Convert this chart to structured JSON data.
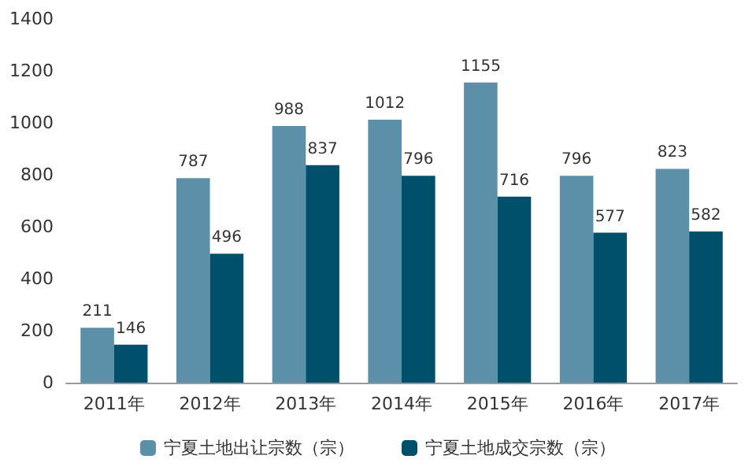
{
  "chart_data": {
    "type": "bar",
    "categories": [
      "2011年",
      "2012年",
      "2013年",
      "2014年",
      "2015年",
      "2016年",
      "2017年"
    ],
    "series": [
      {
        "name": "宁夏土地出让宗数（宗）",
        "color": "#5b90a8",
        "values": [
          211,
          787,
          988,
          1012,
          1155,
          796,
          823
        ]
      },
      {
        "name": "宁夏土地成交宗数（宗）",
        "color": "#00506b",
        "values": [
          146,
          496,
          837,
          796,
          716,
          577,
          582
        ]
      }
    ],
    "ylim": [
      0,
      1400
    ],
    "yticks": [
      0,
      200,
      400,
      600,
      800,
      1000,
      1200,
      1400
    ],
    "data_labels": true,
    "grid": false,
    "legend": "bottom"
  }
}
